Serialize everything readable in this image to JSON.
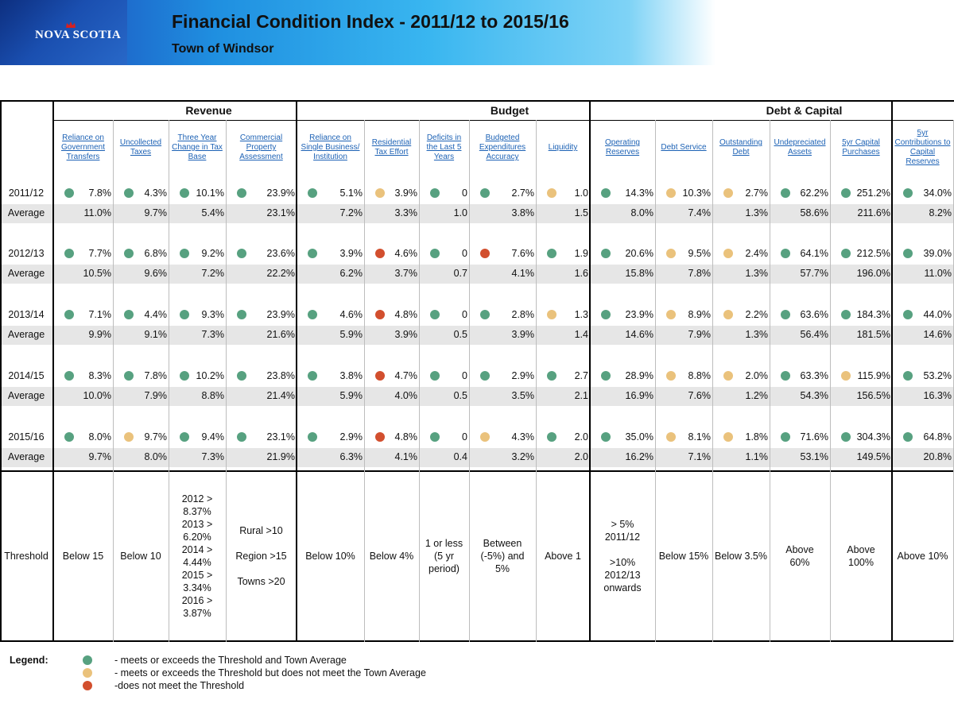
{
  "header": {
    "logo_text": "NOVA SCOTIA",
    "title": "Financial Condition Index - 2011/12 to 2015/16",
    "subtitle": "Town of Windsor"
  },
  "groups": [
    "Revenue",
    "Budget",
    "Debt & Capital"
  ],
  "columns": [
    "Reliance on Government Transfers",
    "Uncollected Taxes",
    "Three Year Change in Tax Base",
    "Commercial Property Assessment",
    "Reliance on Single Business/ Institution",
    "Residential Tax Effort",
    "Deficits in the Last 5 Years",
    "Budgeted Expenditures Accuracy",
    "Liquidity",
    "Operating Reserves",
    "Debt Service",
    "Outstanding Debt",
    "Undepreciated Assets",
    "5yr Capital Purchases",
    "5yr Contributions to Capital Reserves"
  ],
  "average_label": "Average",
  "rows": [
    {
      "year": "2011/12",
      "values": [
        "7.8%",
        "4.3%",
        "10.1%",
        "23.9%",
        "5.1%",
        "3.9%",
        "0",
        "2.7%",
        "1.0",
        "14.3%",
        "10.3%",
        "2.7%",
        "62.2%",
        "251.2%",
        "34.0%"
      ],
      "status": [
        "green",
        "green",
        "green",
        "green",
        "green",
        "yellow",
        "green",
        "green",
        "yellow",
        "green",
        "yellow",
        "yellow",
        "green",
        "green",
        "green"
      ],
      "averages": [
        "11.0%",
        "9.7%",
        "5.4%",
        "23.1%",
        "7.2%",
        "3.3%",
        "1.0",
        "3.8%",
        "1.5",
        "8.0%",
        "7.4%",
        "1.3%",
        "58.6%",
        "211.6%",
        "8.2%"
      ]
    },
    {
      "year": "2012/13",
      "values": [
        "7.7%",
        "6.8%",
        "9.2%",
        "23.6%",
        "3.9%",
        "4.6%",
        "0",
        "7.6%",
        "1.9",
        "20.6%",
        "9.5%",
        "2.4%",
        "64.1%",
        "212.5%",
        "39.0%"
      ],
      "status": [
        "green",
        "green",
        "green",
        "green",
        "green",
        "red",
        "green",
        "red",
        "green",
        "green",
        "yellow",
        "yellow",
        "green",
        "green",
        "green"
      ],
      "averages": [
        "10.5%",
        "9.6%",
        "7.2%",
        "22.2%",
        "6.2%",
        "3.7%",
        "0.7",
        "4.1%",
        "1.6",
        "15.8%",
        "7.8%",
        "1.3%",
        "57.7%",
        "196.0%",
        "11.0%"
      ]
    },
    {
      "year": "2013/14",
      "values": [
        "7.1%",
        "4.4%",
        "9.3%",
        "23.9%",
        "4.6%",
        "4.8%",
        "0",
        "2.8%",
        "1.3",
        "23.9%",
        "8.9%",
        "2.2%",
        "63.6%",
        "184.3%",
        "44.0%"
      ],
      "status": [
        "green",
        "green",
        "green",
        "green",
        "green",
        "red",
        "green",
        "green",
        "yellow",
        "green",
        "yellow",
        "yellow",
        "green",
        "green",
        "green"
      ],
      "averages": [
        "9.9%",
        "9.1%",
        "7.3%",
        "21.6%",
        "5.9%",
        "3.9%",
        "0.5",
        "3.9%",
        "1.4",
        "14.6%",
        "7.9%",
        "1.3%",
        "56.4%",
        "181.5%",
        "14.6%"
      ]
    },
    {
      "year": "2014/15",
      "values": [
        "8.3%",
        "7.8%",
        "10.2%",
        "23.8%",
        "3.8%",
        "4.7%",
        "0",
        "2.9%",
        "2.7",
        "28.9%",
        "8.8%",
        "2.0%",
        "63.3%",
        "115.9%",
        "53.2%"
      ],
      "status": [
        "green",
        "green",
        "green",
        "green",
        "green",
        "red",
        "green",
        "green",
        "green",
        "green",
        "yellow",
        "yellow",
        "green",
        "yellow",
        "green"
      ],
      "averages": [
        "10.0%",
        "7.9%",
        "8.8%",
        "21.4%",
        "5.9%",
        "4.0%",
        "0.5",
        "3.5%",
        "2.1",
        "16.9%",
        "7.6%",
        "1.2%",
        "54.3%",
        "156.5%",
        "16.3%"
      ]
    },
    {
      "year": "2015/16",
      "values": [
        "8.0%",
        "9.7%",
        "9.4%",
        "23.1%",
        "2.9%",
        "4.8%",
        "0",
        "4.3%",
        "2.0",
        "35.0%",
        "8.1%",
        "1.8%",
        "71.6%",
        "304.3%",
        "64.8%"
      ],
      "status": [
        "green",
        "yellow",
        "green",
        "green",
        "green",
        "red",
        "green",
        "yellow",
        "green",
        "green",
        "yellow",
        "yellow",
        "green",
        "green",
        "green"
      ],
      "averages": [
        "9.7%",
        "8.0%",
        "7.3%",
        "21.9%",
        "6.3%",
        "4.1%",
        "0.4",
        "3.2%",
        "2.0",
        "16.2%",
        "7.1%",
        "1.1%",
        "53.1%",
        "149.5%",
        "20.8%"
      ]
    }
  ],
  "threshold": {
    "label": "Threshold",
    "values": [
      "Below 15",
      "Below 10",
      "2012 >\n8.37%\n2013 >\n6.20%\n2014 >\n4.44%\n2015 >\n3.34%\n2016 >\n3.87%",
      "Rural >10\n\nRegion >15\n\nTowns >20",
      "Below 10%",
      "Below 4%",
      "1 or less\n(5 yr\nperiod)",
      "Between\n(-5%) and\n5%",
      "Above 1",
      "> 5%\n2011/12\n\n>10%\n2012/13\nonwards",
      "Below 15%",
      "Below 3.5%",
      "Above\n60%",
      "Above\n100%",
      "Above 10%"
    ]
  },
  "legend": {
    "title": "Legend:",
    "items": [
      {
        "color": "green",
        "text": "- meets or exceeds the Threshold and Town Average"
      },
      {
        "color": "yellow",
        "text": "- meets or exceeds the Threshold but does not meet the Town Average"
      },
      {
        "color": "red",
        "text": "-does not meet the Threshold"
      }
    ]
  },
  "colors": {
    "green": "#57a180",
    "yellow": "#eac27c",
    "red": "#d24f2e",
    "link": "#1d62b5"
  }
}
